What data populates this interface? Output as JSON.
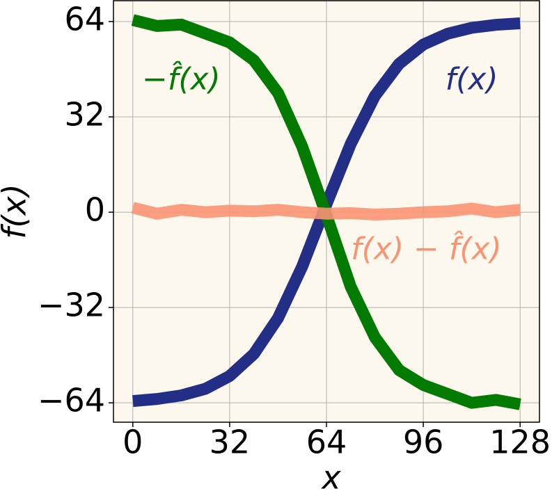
{
  "chart_data": {
    "type": "line",
    "x": [
      0,
      8,
      16,
      24,
      32,
      40,
      48,
      56,
      64,
      72,
      80,
      88,
      96,
      104,
      112,
      120,
      128
    ],
    "series": [
      {
        "name": "f(x)",
        "color": "#232f86",
        "values": [
          -63.4,
          -62.7,
          -61.5,
          -59.3,
          -55.0,
          -47.6,
          -35.5,
          -18.2,
          2.7,
          22.9,
          39.0,
          49.8,
          56.3,
          59.9,
          61.9,
          62.9,
          63.4
        ]
      },
      {
        "name": "−f̂(x)",
        "color": "#037b03",
        "values": [
          64.5,
          62.5,
          63,
          60,
          57,
          51,
          40,
          22,
          -1,
          -25,
          -42,
          -53,
          -58,
          -61,
          -64,
          -63,
          -64.5
        ]
      },
      {
        "name": "f(x) − f̂(x)",
        "color": "#fa9372",
        "values": [
          1.5,
          -0.5,
          0.8,
          0,
          0.5,
          0.3,
          0.8,
          0,
          -0.5,
          -0.3,
          -0.8,
          -0.5,
          0,
          0.3,
          1.2,
          0,
          0.8
        ]
      }
    ],
    "xlabel": "x",
    "ylabel": "f(x)",
    "xlim": [
      -6.4,
      134.4
    ],
    "ylim": [
      -70.5,
      71
    ],
    "xticks": [
      0,
      32,
      64,
      96,
      128
    ],
    "yticks": [
      {
        "value": -64,
        "label": "−64"
      },
      {
        "value": -32,
        "label": "−32"
      },
      0,
      32,
      64
    ],
    "grid": true,
    "background": "#fcf8ee"
  }
}
